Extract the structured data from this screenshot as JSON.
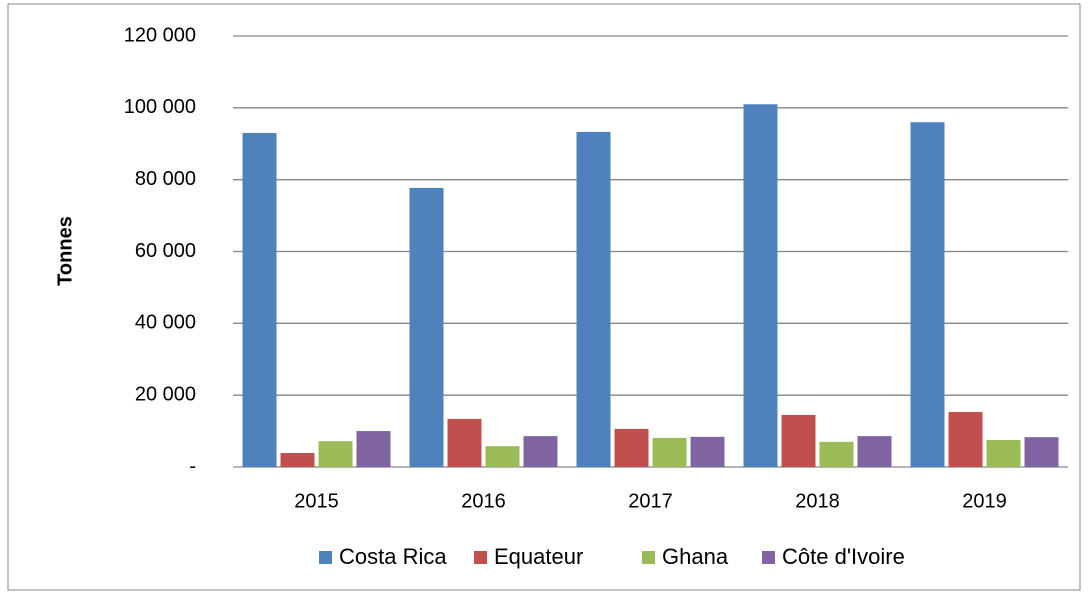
{
  "chart_data": {
    "type": "bar",
    "y_label": "Tonnes",
    "categories": [
      "2015",
      "2016",
      "2017",
      "2018",
      "2019"
    ],
    "series": [
      {
        "name": "Costa Rica",
        "color": "#4f81bd",
        "values": [
          93000,
          77700,
          93300,
          101000,
          96000
        ]
      },
      {
        "name": "Equateur",
        "color": "#c0504d",
        "values": [
          3900,
          13400,
          10600,
          14500,
          15300
        ]
      },
      {
        "name": "Ghana",
        "color": "#9bbb59",
        "values": [
          7200,
          5800,
          8100,
          7000,
          7500
        ]
      },
      {
        "name": "Côte d'Ivoire",
        "color": "#8064a2",
        "values": [
          10000,
          8600,
          8400,
          8600,
          8300
        ]
      }
    ],
    "ylim": [
      0,
      120000
    ],
    "yticks": [
      {
        "value": 0,
        "label": "-"
      },
      {
        "value": 20000,
        "label": "20 000"
      },
      {
        "value": 40000,
        "label": "40 000"
      },
      {
        "value": 60000,
        "label": "60 000"
      },
      {
        "value": 80000,
        "label": "80 000"
      },
      {
        "value": 100000,
        "label": "100 000"
      },
      {
        "value": 120000,
        "label": "120 000"
      }
    ],
    "grid": true,
    "legend": "bottom"
  }
}
